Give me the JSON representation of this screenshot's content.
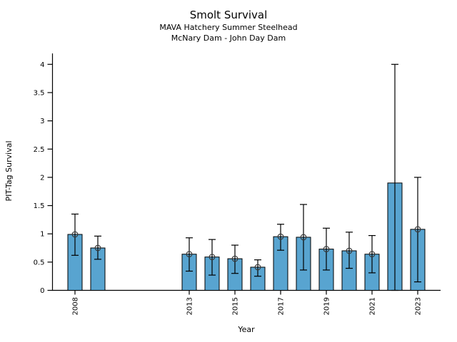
{
  "titles": {
    "title": "Smolt Survival",
    "subtitle1": "MAVA Hatchery Summer Steelhead",
    "subtitle2": "McNary Dam - John Day Dam"
  },
  "axes": {
    "xlabel": "Year",
    "ylabel": "PIT-Tag Survival",
    "yticks": [
      "0",
      "0.5",
      "1",
      "1.5",
      "2",
      "2.5",
      "3",
      "3.5",
      "4"
    ],
    "ytick_values": [
      0,
      0.5,
      1,
      1.5,
      2,
      2.5,
      3,
      3.5,
      4
    ],
    "xtick_years": [
      2008,
      2013,
      2015,
      2017,
      2019,
      2021,
      2023
    ],
    "grid": false,
    "spines": [
      "left",
      "bottom"
    ]
  },
  "style": {
    "bar_fill": "#58a4d0",
    "bar_edge": "#000000",
    "error_color": "#000000",
    "marker_edge": "#3a3a3a",
    "background": "#ffffff"
  },
  "chart_data": {
    "type": "bar",
    "title": "Smolt Survival",
    "subtitle": [
      "MAVA Hatchery Summer Steelhead",
      "McNary Dam - John Day Dam"
    ],
    "xlabel": "Year",
    "ylabel": "PIT-Tag Survival",
    "x": [
      2008,
      2009,
      2013,
      2014,
      2015,
      2016,
      2017,
      2018,
      2019,
      2020,
      2021,
      2022,
      2023
    ],
    "values": [
      0.99,
      0.75,
      0.64,
      0.59,
      0.56,
      0.41,
      0.95,
      0.94,
      0.73,
      0.7,
      0.64,
      1.9,
      1.08
    ],
    "ci_low": [
      0.62,
      0.55,
      0.34,
      0.27,
      0.3,
      0.25,
      0.71,
      0.36,
      0.36,
      0.39,
      0.31,
      0.0,
      0.15
    ],
    "ci_high": [
      1.35,
      0.96,
      0.93,
      0.9,
      0.8,
      0.54,
      1.17,
      1.52,
      1.1,
      1.03,
      0.97,
      4.0,
      2.0
    ],
    "point_marker": [
      true,
      true,
      true,
      true,
      true,
      true,
      true,
      true,
      true,
      true,
      true,
      false,
      true
    ],
    "missing_years": [
      2010,
      2011,
      2012
    ],
    "xlim": [
      2007,
      2023.8
    ],
    "ylim": [
      0,
      4.2
    ],
    "legend": null,
    "grid": false
  }
}
